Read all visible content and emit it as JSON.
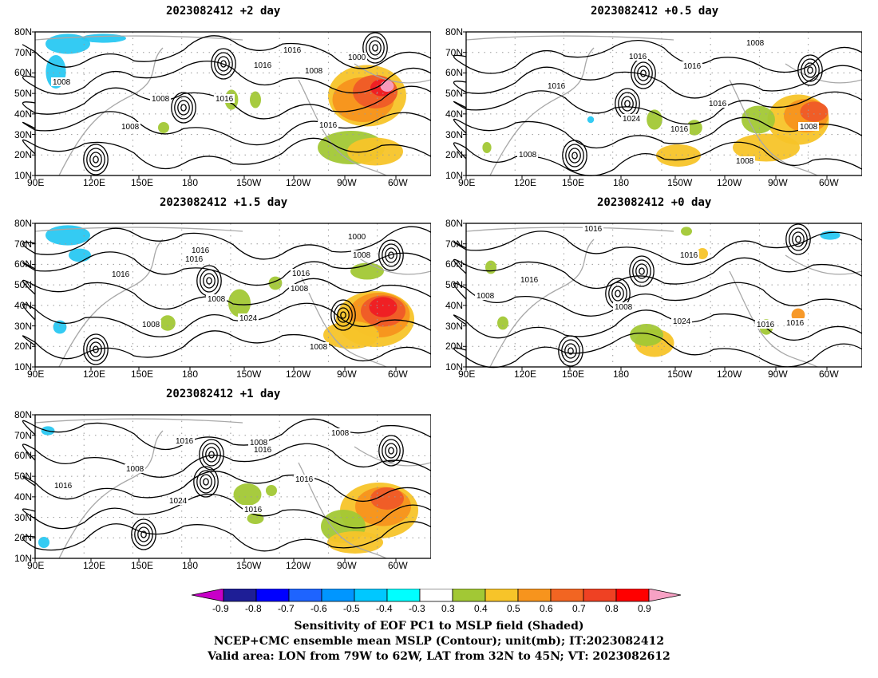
{
  "panels": [
    {
      "title": "2023082412 +2 day",
      "contour_labels": [
        "1016",
        "1000",
        "1016",
        "1008",
        "1008",
        "1016",
        "1008",
        "1016",
        "1008"
      ],
      "colors": [
        "#29c8f2",
        "#a2c835",
        "#f7c429",
        "#f7941d",
        "#ef5a28",
        "#ee1c24"
      ]
    },
    {
      "title": "2023082412 +0.5 day",
      "contour_labels": [
        "1008",
        "1016",
        "1016",
        "1016",
        "1016",
        "1008",
        "1024",
        "1016",
        "1008",
        "1008"
      ],
      "colors": [
        "#29c8f2",
        "#a2c835",
        "#f7c429",
        "#f7941d",
        "#ef5a28"
      ]
    },
    {
      "title": "2023082412 +1.5 day",
      "contour_labels": [
        "1000",
        "1016",
        "1016",
        "1008",
        "1016",
        "1016",
        "1008",
        "1008",
        "1024",
        "1008",
        "1008"
      ],
      "colors": [
        "#29c8f2",
        "#a2c835",
        "#f7c429",
        "#f7941d",
        "#ef5a28",
        "#ee1c24"
      ]
    },
    {
      "title": "2023082412 +0 day",
      "contour_labels": [
        "1016",
        "1016",
        "1016",
        "1008",
        "1008",
        "1024",
        "1016",
        "1016"
      ],
      "colors": [
        "#29c8f2",
        "#a2c835",
        "#f7c429",
        "#f7941d"
      ]
    },
    {
      "title": "2023082412 +1 day",
      "contour_labels": [
        "1008",
        "1016",
        "1008",
        "1016",
        "1008",
        "1016",
        "1016",
        "1024",
        "1016"
      ],
      "colors": [
        "#29c8f2",
        "#a2c835",
        "#f7c429",
        "#f7941d",
        "#ef5a28"
      ]
    }
  ],
  "lat_ticks": [
    "80N",
    "70N",
    "60N",
    "50N",
    "40N",
    "30N",
    "20N",
    "10N"
  ],
  "lon_ticks": [
    "90E",
    "120E",
    "150E",
    "180",
    "150W",
    "120W",
    "90W",
    "60W"
  ],
  "colorbar": {
    "labels": [
      "-0.9",
      "-0.8",
      "-0.7",
      "-0.6",
      "-0.5",
      "-0.4",
      "-0.3",
      "0.3",
      "0.4",
      "0.5",
      "0.6",
      "0.7",
      "0.8",
      "0.9"
    ],
    "colors": [
      "#c800c8",
      "#1e1e96",
      "#0000ff",
      "#1e64ff",
      "#0096ff",
      "#00c8ff",
      "#00ffff",
      "#ffffff",
      "#a2c835",
      "#f7c429",
      "#f7941d",
      "#f26522",
      "#ef4123",
      "#ff0000",
      "#f7a1c4"
    ]
  },
  "footer": {
    "line1": "Sensitivity of EOF PC1 to MSLP field (Shaded)",
    "line2": "NCEP+CMC ensemble mean MSLP (Contour); unit(mb); IT:2023082412",
    "line3": "Valid area: LON from 79W to 62W, LAT from 32N to 45N; VT: 2023082612"
  }
}
